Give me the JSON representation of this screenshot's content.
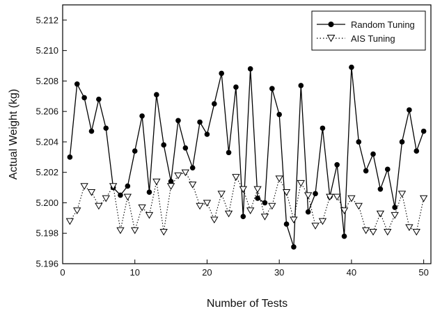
{
  "chart_data": {
    "type": "line",
    "xlabel": "Number of Tests",
    "ylabel": "Actual Weight (kg)",
    "xlim": [
      0,
      51
    ],
    "ylim": [
      5.196,
      5.213
    ],
    "xticks": [
      0,
      10,
      20,
      30,
      40,
      50
    ],
    "yticks": [
      5.196,
      5.198,
      5.2,
      5.202,
      5.204,
      5.206,
      5.208,
      5.21,
      5.212
    ],
    "grid": false,
    "legend_position": "top-right",
    "x": [
      1,
      2,
      3,
      4,
      5,
      6,
      7,
      8,
      9,
      10,
      11,
      12,
      13,
      14,
      15,
      16,
      17,
      18,
      19,
      20,
      21,
      22,
      23,
      24,
      25,
      26,
      27,
      28,
      29,
      30,
      31,
      32,
      33,
      34,
      35,
      36,
      37,
      38,
      39,
      40,
      41,
      42,
      43,
      44,
      45,
      46,
      47,
      48,
      49,
      50
    ],
    "series": [
      {
        "name": "Random Tuning",
        "marker": "filled-circle",
        "line_style": "solid",
        "values": [
          5.203,
          5.2078,
          5.2069,
          5.2047,
          5.2068,
          5.2049,
          5.201,
          5.2005,
          5.2011,
          5.2034,
          5.2057,
          5.2007,
          5.2071,
          5.2038,
          5.2014,
          5.2054,
          5.2036,
          5.2023,
          5.2053,
          5.2045,
          5.2065,
          5.2085,
          5.2033,
          5.2076,
          5.1991,
          5.2088,
          5.2003,
          5.2,
          5.2075,
          5.2058,
          5.1986,
          5.1971,
          5.2077,
          5.1994,
          5.2006,
          5.2049,
          5.2004,
          5.2025,
          5.1978,
          5.2089,
          5.204,
          5.2021,
          5.2032,
          5.2009,
          5.2022,
          5.1997,
          5.204,
          5.2061,
          5.2034,
          5.2047
        ]
      },
      {
        "name": "AIS Tuning",
        "marker": "open-triangle-down",
        "line_style": "dotted",
        "values": [
          5.1988,
          5.1995,
          5.2011,
          5.2007,
          5.1998,
          5.2003,
          5.2011,
          5.1982,
          5.2004,
          5.1982,
          5.1997,
          5.1992,
          5.2014,
          5.1981,
          5.2011,
          5.2018,
          5.202,
          5.2012,
          5.1998,
          5.2,
          5.1989,
          5.2006,
          5.1993,
          5.2017,
          5.2009,
          5.1995,
          5.2009,
          5.1991,
          5.1998,
          5.2016,
          5.2007,
          5.1989,
          5.2013,
          5.2005,
          5.1985,
          5.1988,
          5.2004,
          5.2004,
          5.1995,
          5.2003,
          5.1998,
          5.1982,
          5.1981,
          5.1993,
          5.1981,
          5.1992,
          5.2006,
          5.1984,
          5.1981,
          5.2003
        ]
      }
    ]
  }
}
